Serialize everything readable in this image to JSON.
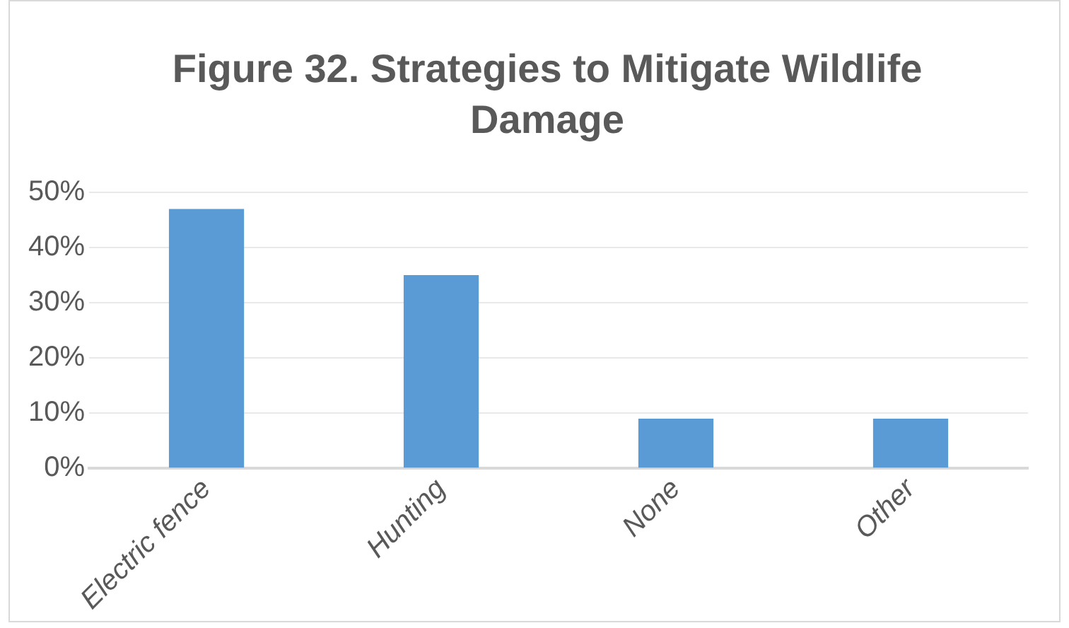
{
  "chart_data": {
    "type": "bar",
    "title": "Figure 32. Strategies to Mitigate Wildlife Damage",
    "categories": [
      "Electric fence",
      "Hunting",
      "None",
      "Other"
    ],
    "values": [
      47,
      35,
      9,
      9
    ],
    "color": "#5b9bd5",
    "ylim": [
      0,
      50
    ],
    "yticks": [
      {
        "value": 0,
        "label": "0%"
      },
      {
        "value": 10,
        "label": "10%"
      },
      {
        "value": 20,
        "label": "20%"
      },
      {
        "value": 30,
        "label": "30%"
      },
      {
        "value": 40,
        "label": "40%"
      },
      {
        "value": 50,
        "label": "50%"
      }
    ],
    "grid": "y"
  }
}
